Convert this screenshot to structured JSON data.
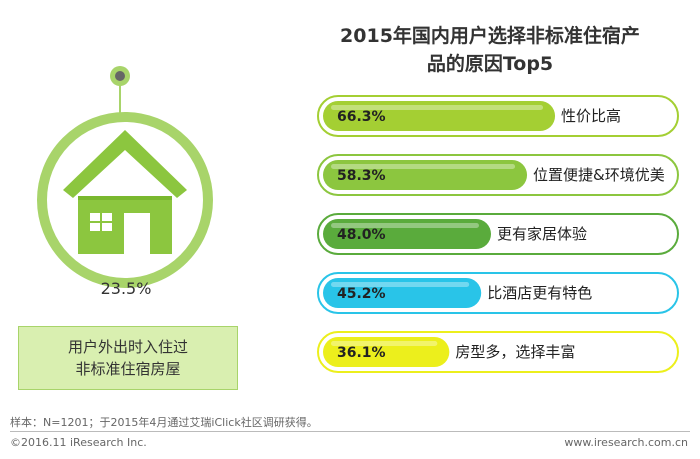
{
  "left_panel": {
    "percent": "23.5%",
    "caption_line1": "用户外出时入住过",
    "caption_line2": "非标准住宿房屋",
    "icon": "house-icon"
  },
  "chart_data": {
    "type": "bar",
    "orientation": "horizontal",
    "title_line1": "2015年国内用户选择非标准住宿产",
    "title_line2": "品的原因Top5",
    "categories": [
      "性价比高",
      "位置便捷&环境优美",
      "更有家居体验",
      "比酒店更有特色",
      "房型多，选择丰富"
    ],
    "values": [
      66.3,
      58.3,
      48.0,
      45.2,
      36.1
    ],
    "value_labels": [
      "66.3%",
      "58.3%",
      "48.0%",
      "45.2%",
      "36.1%"
    ],
    "colors": [
      "#a4cf33",
      "#8cc63f",
      "#5aab3c",
      "#29c4e8",
      "#ecef1c"
    ],
    "xlim": [
      0,
      100
    ],
    "grid": false
  },
  "footer": {
    "note": "样本：N=1201；于2015年4月通过艾瑞iClick社区调研获得。",
    "copyright": "©2016.11 iResearch Inc.",
    "site": "www.iresearch.com.cn"
  }
}
